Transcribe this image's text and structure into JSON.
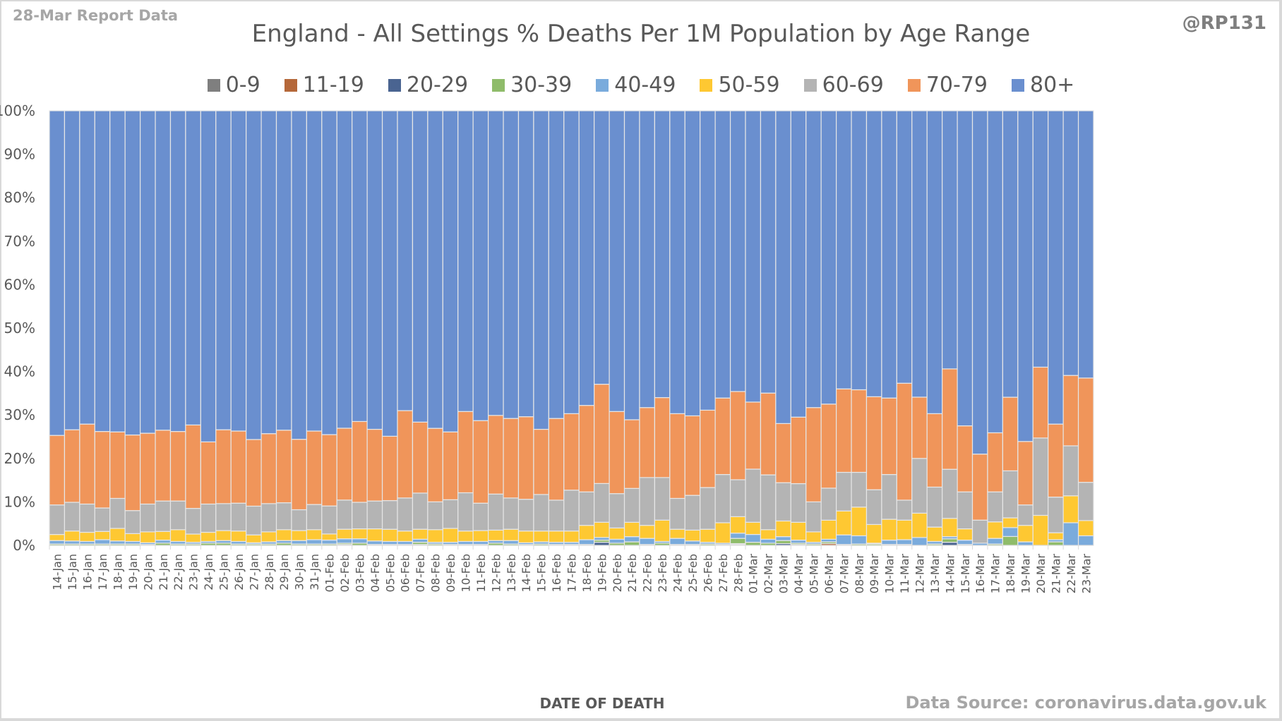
{
  "header": {
    "report_label": "28-Mar Report Data",
    "author": "@RP131"
  },
  "footer": {
    "source": "Data Source: coronavirus.data.gov.uk"
  },
  "chart_data": {
    "type": "bar",
    "stacked": true,
    "percent_stacked": true,
    "title": "England - All Settings % Deaths Per 1M Population by Age Range",
    "xlabel": "DATE OF DEATH",
    "ylabel": "",
    "ylim": [
      0,
      100
    ],
    "yticks": [
      "0%",
      "10%",
      "20%",
      "30%",
      "40%",
      "50%",
      "60%",
      "70%",
      "80%",
      "90%",
      "100%"
    ],
    "grid": true,
    "legend_position": "top",
    "categories": [
      "14-Jan",
      "15-Jan",
      "16-Jan",
      "17-Jan",
      "18-Jan",
      "19-Jan",
      "20-Jan",
      "21-Jan",
      "22-Jan",
      "23-Jan",
      "24-Jan",
      "25-Jan",
      "26-Jan",
      "27-Jan",
      "28-Jan",
      "29-Jan",
      "30-Jan",
      "31-Jan",
      "01-Feb",
      "02-Feb",
      "03-Feb",
      "04-Feb",
      "05-Feb",
      "06-Feb",
      "07-Feb",
      "08-Feb",
      "09-Feb",
      "10-Feb",
      "11-Feb",
      "12-Feb",
      "13-Feb",
      "14-Feb",
      "15-Feb",
      "16-Feb",
      "17-Feb",
      "18-Feb",
      "19-Feb",
      "20-Feb",
      "21-Feb",
      "22-Feb",
      "23-Feb",
      "24-Feb",
      "25-Feb",
      "26-Feb",
      "27-Feb",
      "28-Feb",
      "01-Mar",
      "02-Mar",
      "03-Mar",
      "04-Mar",
      "05-Mar",
      "06-Mar",
      "07-Mar",
      "08-Mar",
      "09-Mar",
      "10-Mar",
      "11-Mar",
      "12-Mar",
      "13-Mar",
      "14-Mar",
      "15-Mar",
      "16-Mar",
      "17-Mar",
      "18-Mar",
      "19-Mar",
      "20-Mar",
      "21-Mar",
      "22-Mar",
      "23-Mar"
    ],
    "series": [
      {
        "name": "0-9",
        "color": "#7f7f7f",
        "values": [
          0.0,
          0.0,
          0.0,
          0.0,
          0.0,
          0.0,
          0.0,
          0.0,
          0.0,
          0.0,
          0.0,
          0.0,
          0.0,
          0.0,
          0.0,
          0.0,
          0.0,
          0.0,
          0.0,
          0.0,
          0.0,
          0.0,
          0.0,
          0.0,
          0.0,
          0.0,
          0.0,
          0.0,
          0.0,
          0.0,
          0.0,
          0.0,
          0.0,
          0.0,
          0.0,
          0.0,
          0.0,
          0.0,
          0.0,
          0.0,
          0.0,
          0.0,
          0.0,
          0.0,
          0.0,
          0.0,
          0.0,
          0.0,
          0.0,
          0.2,
          0.0,
          0.0,
          0.0,
          0.0,
          0.0,
          0.0,
          0.0,
          0.0,
          0.0,
          0.0,
          0.0,
          0.0,
          0.0,
          0.0,
          0.0,
          0.0,
          0.0,
          0.0,
          0.0
        ]
      },
      {
        "name": "11-19",
        "color": "#b5683a",
        "values": [
          0.0,
          0.0,
          0.0,
          0.0,
          0.0,
          0.0,
          0.0,
          0.0,
          0.0,
          0.0,
          0.0,
          0.0,
          0.0,
          0.0,
          0.0,
          0.0,
          0.0,
          0.0,
          0.0,
          0.0,
          0.0,
          0.0,
          0.0,
          0.0,
          0.0,
          0.0,
          0.0,
          0.0,
          0.0,
          0.0,
          0.0,
          0.0,
          0.0,
          0.0,
          0.0,
          0.0,
          0.0,
          0.0,
          0.0,
          0.0,
          0.0,
          0.0,
          0.0,
          0.0,
          0.0,
          0.2,
          0.0,
          0.0,
          0.0,
          0.0,
          0.0,
          0.4,
          0.0,
          0.0,
          0.0,
          0.0,
          0.0,
          0.0,
          0.0,
          0.0,
          0.0,
          0.0,
          0.0,
          0.0,
          0.0,
          0.0,
          0.0,
          0.0,
          0.0
        ]
      },
      {
        "name": "20-29",
        "color": "#4a6491",
        "values": [
          0.0,
          0.0,
          0.0,
          0.0,
          0.0,
          0.0,
          0.0,
          0.0,
          0.0,
          0.0,
          0.0,
          0.0,
          0.0,
          0.0,
          0.0,
          0.0,
          0.0,
          0.0,
          0.0,
          0.2,
          0.0,
          0.0,
          0.0,
          0.0,
          0.2,
          0.0,
          0.0,
          0.0,
          0.0,
          0.0,
          0.0,
          0.0,
          0.0,
          0.0,
          0.0,
          0.0,
          0.7,
          0.0,
          0.0,
          0.0,
          0.0,
          0.0,
          0.0,
          0.0,
          0.0,
          0.2,
          0.0,
          0.0,
          0.4,
          0.0,
          0.0,
          0.0,
          0.0,
          0.0,
          0.0,
          0.0,
          0.0,
          0.0,
          0.0,
          0.7,
          0.0,
          0.0,
          0.0,
          0.0,
          0.0,
          0.0,
          0.0,
          0.0,
          0.0
        ]
      },
      {
        "name": "30-39",
        "color": "#8fbc6a",
        "values": [
          0.3,
          0.3,
          0.3,
          0.3,
          0.3,
          0.3,
          0.2,
          0.5,
          0.3,
          0.3,
          0.5,
          0.5,
          0.3,
          0.3,
          0.3,
          0.5,
          0.3,
          0.3,
          0.3,
          0.3,
          0.5,
          0.2,
          0.2,
          0.2,
          0.5,
          0.3,
          0.2,
          0.2,
          0.2,
          0.5,
          0.3,
          0.2,
          0.3,
          0.2,
          0.2,
          0.2,
          0.5,
          0.5,
          0.8,
          0.2,
          0.5,
          0.2,
          0.2,
          0.3,
          0.2,
          1.2,
          0.7,
          0.5,
          0.7,
          0.3,
          0.3,
          0.4,
          0.2,
          0.3,
          0.3,
          0.2,
          0.2,
          0.0,
          0.3,
          0.8,
          0.2,
          0.0,
          0.3,
          2.0,
          0.0,
          0.0,
          0.8,
          0.0,
          0.0
        ]
      },
      {
        "name": "40-49",
        "color": "#7aabdc",
        "values": [
          0.8,
          0.7,
          0.6,
          1.0,
          0.7,
          0.6,
          0.4,
          0.7,
          0.6,
          0.4,
          0.4,
          0.6,
          0.6,
          0.3,
          0.5,
          0.6,
          0.8,
          1.0,
          0.9,
          1.0,
          1.0,
          0.8,
          0.7,
          0.7,
          0.7,
          0.4,
          0.5,
          0.7,
          0.7,
          0.6,
          0.8,
          0.4,
          0.5,
          0.5,
          0.5,
          1.1,
          0.6,
          0.9,
          1.2,
          1.4,
          0.4,
          1.4,
          0.8,
          0.4,
          0.3,
          1.2,
          1.8,
          0.9,
          0.9,
          0.7,
          0.4,
          0.6,
          2.2,
          1.9,
          0.2,
          1.0,
          1.1,
          1.8,
          0.6,
          0.5,
          1.0,
          0.5,
          1.3,
          2.0,
          0.8,
          0.0,
          0.5,
          5.2,
          2.2
        ]
      },
      {
        "name": "50-59",
        "color": "#fec832",
        "values": [
          1.4,
          2.3,
          2.1,
          1.9,
          2.9,
          1.8,
          2.5,
          2.0,
          2.7,
          1.9,
          2.1,
          2.3,
          2.4,
          1.8,
          2.3,
          2.5,
          2.3,
          2.3,
          1.4,
          2.2,
          2.3,
          2.8,
          2.8,
          2.4,
          2.3,
          2.9,
          3.2,
          2.4,
          2.5,
          2.4,
          2.6,
          2.7,
          2.5,
          2.6,
          2.6,
          3.3,
          3.5,
          2.6,
          3.3,
          3.0,
          4.9,
          2.1,
          2.5,
          3.0,
          4.7,
          3.8,
          2.8,
          2.2,
          3.6,
          4.1,
          2.4,
          4.4,
          5.5,
          6.6,
          4.3,
          4.8,
          4.5,
          5.6,
          3.3,
          4.2,
          2.6,
          0.0,
          3.8,
          2.2,
          3.8,
          6.9,
          1.6,
          6.2,
          3.5
        ]
      },
      {
        "name": "60-69",
        "color": "#b4b4b4",
        "values": [
          6.8,
          6.6,
          6.5,
          5.4,
          6.9,
          5.3,
          6.4,
          7.0,
          6.6,
          5.9,
          6.5,
          6.2,
          6.4,
          6.6,
          6.5,
          6.2,
          4.8,
          5.8,
          6.4,
          6.7,
          6.1,
          6.4,
          6.6,
          7.6,
          8.3,
          6.4,
          6.6,
          8.8,
          6.3,
          8.3,
          7.2,
          7.3,
          8.4,
          7.1,
          9.4,
          7.7,
          8.9,
          7.9,
          7.8,
          11.0,
          9.8,
          7.1,
          8.0,
          9.6,
          11.1,
          8.5,
          12.2,
          12.6,
          8.8,
          8.9,
          6.9,
          7.4,
          8.9,
          8.0,
          8.0,
          10.3,
          4.6,
          12.6,
          9.2,
          11.3,
          8.5,
          5.3,
          6.9,
          10.6,
          4.7,
          17.8,
          8.2,
          11.5,
          8.8
        ]
      },
      {
        "name": "70-79",
        "color": "#f0955a",
        "values": [
          16.0,
          16.7,
          18.4,
          17.6,
          15.3,
          17.4,
          16.3,
          16.3,
          16.0,
          19.2,
          14.3,
          17.0,
          16.6,
          15.3,
          16.1,
          16.7,
          16.2,
          16.9,
          16.3,
          16.5,
          18.6,
          16.5,
          14.8,
          20.1,
          16.3,
          16.9,
          15.6,
          18.7,
          19.0,
          18.1,
          18.3,
          19.0,
          15.0,
          18.8,
          17.6,
          19.9,
          22.8,
          18.9,
          15.8,
          16.1,
          18.4,
          19.5,
          18.3,
          17.8,
          17.6,
          20.3,
          15.4,
          18.8,
          13.6,
          15.3,
          21.7,
          19.4,
          19.2,
          19.0,
          21.4,
          17.6,
          26.9,
          14.1,
          16.9,
          23.1,
          15.2,
          15.2,
          13.6,
          16.6,
          14.6,
          16.3,
          16.8,
          16.2,
          24.0
        ]
      },
      {
        "name": "80+",
        "color": "#6a8fcf",
        "values": [
          74.7,
          73.4,
          72.1,
          73.8,
          73.9,
          74.6,
          74.2,
          73.5,
          73.8,
          72.3,
          76.2,
          73.4,
          73.7,
          75.5,
          74.3,
          73.5,
          75.6,
          73.7,
          74.0,
          72.9,
          71.5,
          73.3,
          74.9,
          69.0,
          71.5,
          73.0,
          73.9,
          69.2,
          71.3,
          70.1,
          70.8,
          70.4,
          73.3,
          70.8,
          69.7,
          67.8,
          62.8,
          69.2,
          71.1,
          68.3,
          66.0,
          69.7,
          70.2,
          68.9,
          66.1,
          64.6,
          66.9,
          64.9,
          71.9,
          70.5,
          68.3,
          67.7,
          64.0,
          64.2,
          65.8,
          66.1,
          62.7,
          65.9,
          69.7,
          59.4,
          72.5,
          79.0,
          74.1,
          64.6,
          76.1,
          59.0,
          72.1,
          60.9,
          61.5
        ]
      }
    ]
  }
}
